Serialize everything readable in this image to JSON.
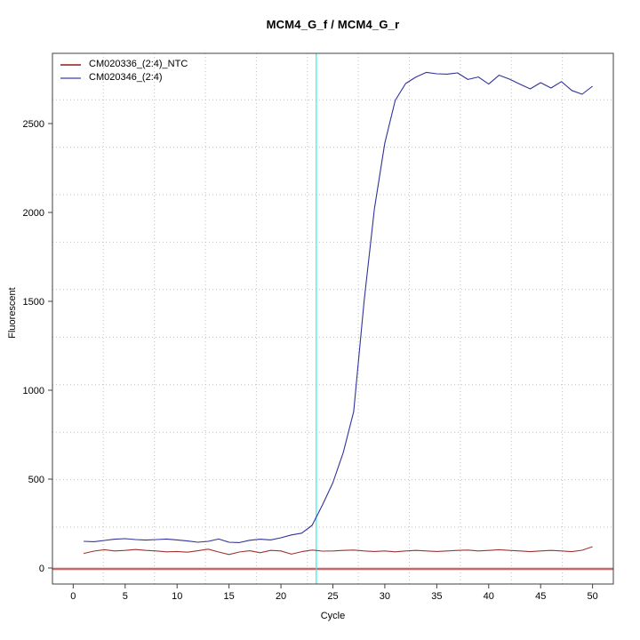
{
  "chart_data": {
    "type": "line",
    "title": "MCM4_G_f / MCM4_G_r",
    "xlabel": "Cycle",
    "ylabel": "Fluorescent",
    "xlim": [
      -2,
      52
    ],
    "ylim": [
      -90,
      2895
    ],
    "x_ticks": [
      0,
      5,
      10,
      15,
      20,
      25,
      30,
      35,
      40,
      45,
      50
    ],
    "y_ticks": [
      0,
      500,
      1000,
      1500,
      2000,
      2500
    ],
    "grid": {
      "style": "dotted",
      "color": "#bfbfbf",
      "x_values": [
        2.9,
        7.81,
        12.72,
        17.63,
        22.54,
        27.45,
        32.36,
        37.27,
        42.18,
        47.09
      ],
      "y_values": [
        230,
        497,
        764,
        1031,
        1298,
        1566,
        1833,
        2100,
        2367,
        2634
      ]
    },
    "threshold_line": {
      "y": 0,
      "color": "#c96666",
      "width": 2.6
    },
    "ct_line": {
      "x": 23.4,
      "color": "#00ffff",
      "width": 1.2
    },
    "x": [
      1,
      2,
      3,
      4,
      5,
      6,
      7,
      8,
      9,
      10,
      11,
      12,
      13,
      14,
      15,
      16,
      17,
      18,
      19,
      20,
      21,
      22,
      23,
      24,
      25,
      26,
      27,
      28,
      29,
      30,
      31,
      32,
      33,
      34,
      35,
      36,
      37,
      38,
      39,
      40,
      41,
      42,
      43,
      44,
      45,
      46,
      47,
      48,
      49,
      50
    ],
    "series": [
      {
        "name": "CM020336_(2:4)_NTC",
        "color": "#a03434",
        "legend_color": "#b05252",
        "values": [
          82,
          95,
          103,
          96,
          99,
          104,
          99,
          96,
          91,
          93,
          89,
          97,
          106,
          90,
          76,
          90,
          97,
          86,
          99,
          96,
          78,
          92,
          101,
          95,
          96,
          99,
          101,
          96,
          93,
          96,
          91,
          96,
          99,
          96,
          93,
          96,
          99,
          101,
          96,
          99,
          103,
          99,
          96,
          92,
          96,
          99,
          96,
          92,
          100,
          120
        ]
      },
      {
        "name": "CM020346_(2:4)",
        "color": "#32329b",
        "legend_color": "#8585cd",
        "values": [
          150,
          148,
          155,
          162,
          165,
          160,
          157,
          160,
          163,
          158,
          152,
          145,
          150,
          163,
          145,
          143,
          156,
          162,
          158,
          170,
          186,
          196,
          240,
          355,
          480,
          650,
          880,
          1500,
          2020,
          2390,
          2630,
          2725,
          2762,
          2788,
          2780,
          2778,
          2785,
          2748,
          2762,
          2722,
          2772,
          2750,
          2722,
          2695,
          2730,
          2700,
          2736,
          2686,
          2665,
          2710
        ]
      }
    ],
    "legend_position": "top-left",
    "box_color": "#404040",
    "tick_font_size": 11
  }
}
